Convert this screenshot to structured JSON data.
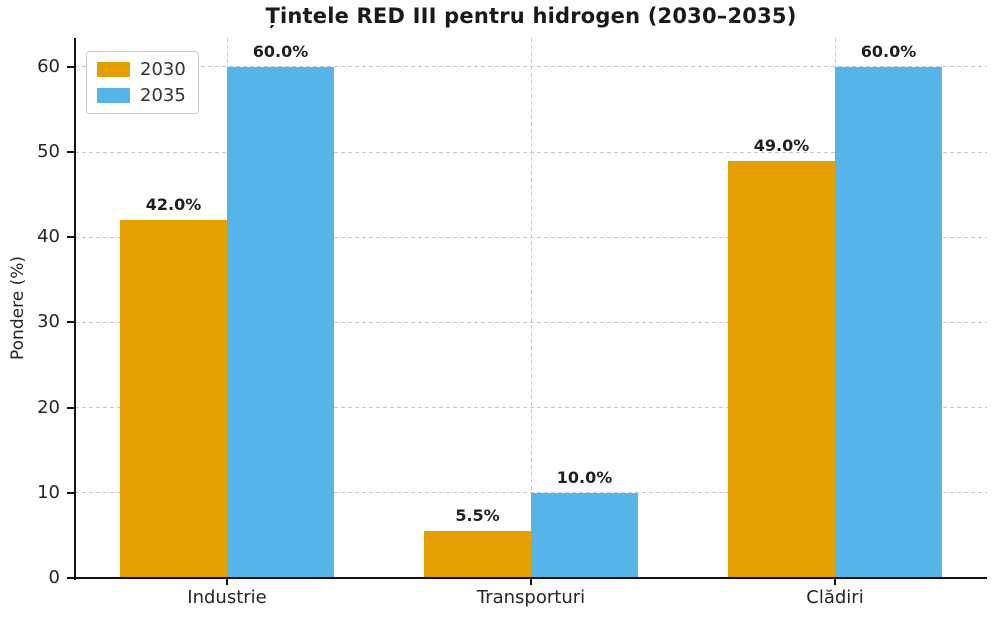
{
  "chart_data": {
    "type": "bar",
    "title": "Țintele RED III pentru hidrogen (2030–2035)",
    "xlabel": "",
    "ylabel": "Pondere (%)",
    "categories": [
      "Industrie",
      "Transporturi",
      "Clădiri"
    ],
    "series": [
      {
        "name": "2030",
        "color": "#E69F00",
        "values": [
          42,
          5.5,
          49
        ],
        "labels": [
          "42.0%",
          "5.5%",
          "49.0%"
        ]
      },
      {
        "name": "2035",
        "color": "#56B4E9",
        "values": [
          60,
          10,
          60
        ],
        "labels": [
          "60.0%",
          "10.0%",
          "60.0%"
        ]
      }
    ],
    "yticks": [
      0,
      10,
      20,
      30,
      40,
      50,
      60
    ],
    "ylim": [
      0,
      63.4
    ],
    "grid": "dashed light-gray horizontal lines at each ytick and vertical lines at category centers",
    "legend_position": "upper left",
    "bar_unit": "%"
  },
  "colors": {
    "series_2030": "#E69F00",
    "series_2035": "#56B4E9",
    "grid": "#c9c9c9",
    "axis": "#111111",
    "text": "#262626",
    "title_text": "#1a1a1a",
    "background": "#ffffff"
  }
}
